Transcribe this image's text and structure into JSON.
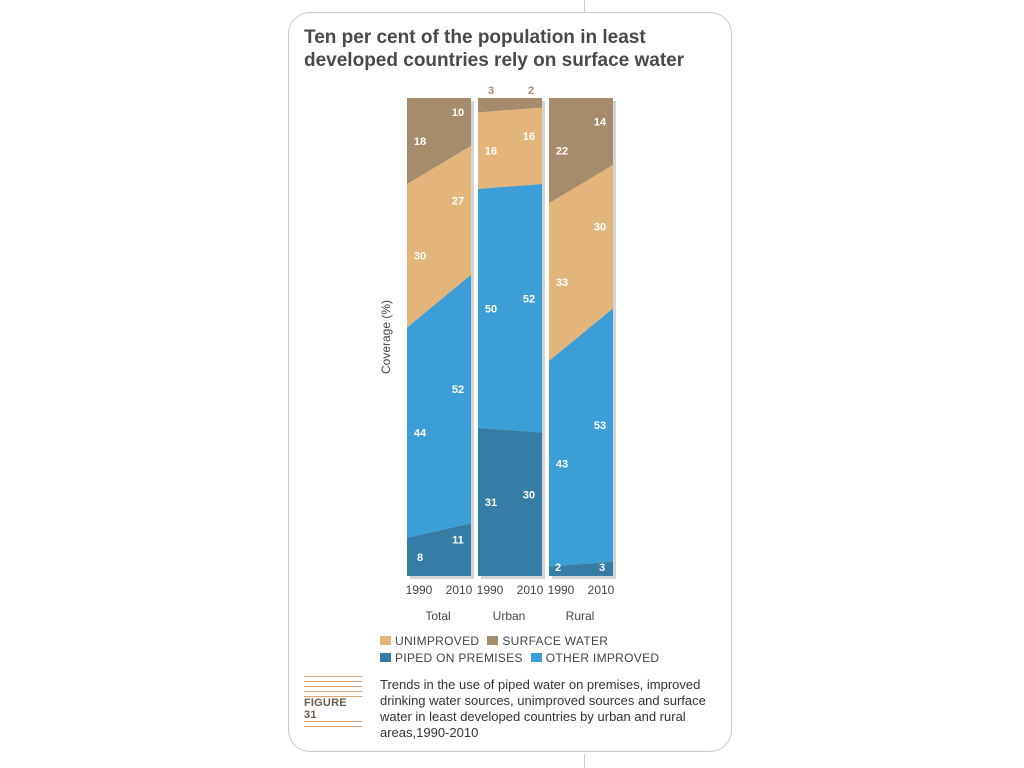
{
  "title": "Ten per cent of the population in least developed countries rely on surface water",
  "caption": "Trends in the use of piped water on premises, improved drinking water sources, unimproved sources and surface water in least developed countries by urban and rural areas,1990-2010",
  "figure_label": "FIGURE 31",
  "colors": {
    "piped": "#357ca6",
    "other_improved": "#3c9ed6",
    "unimproved": "#e3b57b",
    "surface_water": "#a48c6c",
    "label_text": "#ffffff",
    "outside_label_text": "#a48c6c"
  },
  "legend": [
    {
      "key": "unimproved",
      "label": "UNIMPROVED",
      "color": "#e3b57b"
    },
    {
      "key": "surface_water",
      "label": "SURFACE WATER",
      "color": "#a48c6c"
    },
    {
      "key": "piped",
      "label": "PIPED ON PREMISES",
      "color": "#357ca6"
    },
    {
      "key": "other_improved",
      "label": "OTHER IMPROVED",
      "color": "#3c9ed6"
    }
  ],
  "chart_data": {
    "type": "area",
    "title": "Ten per cent of the population in least developed countries rely on surface water",
    "ylabel": "Coverage (%)",
    "xlabel": "",
    "ylim": [
      0,
      100
    ],
    "grid": false,
    "legend_position": "bottom",
    "series_order": [
      "Piped on premises",
      "Other improved",
      "Unimproved",
      "Surface water"
    ],
    "panels": [
      {
        "name": "Total",
        "x": [
          "1990",
          "2010"
        ],
        "series": [
          {
            "name": "Piped on premises",
            "values": [
              8,
              11
            ]
          },
          {
            "name": "Other improved",
            "values": [
              44,
              52
            ]
          },
          {
            "name": "Unimproved",
            "values": [
              30,
              27
            ]
          },
          {
            "name": "Surface water",
            "values": [
              18,
              10
            ]
          }
        ]
      },
      {
        "name": "Urban",
        "x": [
          "1990",
          "2010"
        ],
        "series": [
          {
            "name": "Piped on premises",
            "values": [
              31,
              30
            ]
          },
          {
            "name": "Other improved",
            "values": [
              50,
              52
            ]
          },
          {
            "name": "Unimproved",
            "values": [
              16,
              16
            ]
          },
          {
            "name": "Surface water",
            "values": [
              3,
              2
            ]
          }
        ]
      },
      {
        "name": "Rural",
        "x": [
          "1990",
          "2010"
        ],
        "series": [
          {
            "name": "Piped on premises",
            "values": [
              2,
              3
            ]
          },
          {
            "name": "Other improved",
            "values": [
              43,
              53
            ]
          },
          {
            "name": "Unimproved",
            "values": [
              33,
              30
            ]
          },
          {
            "name": "Surface water",
            "values": [
              22,
              14
            ]
          }
        ]
      }
    ]
  }
}
